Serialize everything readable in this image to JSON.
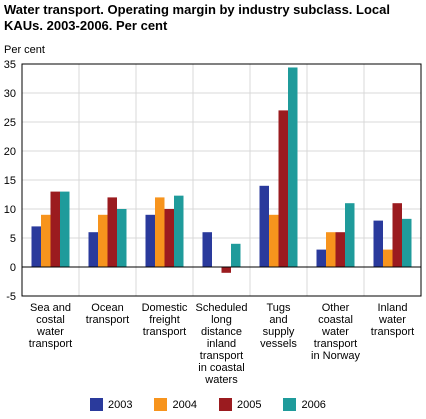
{
  "chart_data": {
    "type": "bar",
    "title": "Water transport. Operating margin by industry subclass. Local KAUs. 2003-2006. Per cent",
    "ylabel": "Per cent",
    "xlabel": "",
    "ylim": [
      -5,
      35
    ],
    "yticks": [
      35,
      30,
      25,
      20,
      15,
      10,
      5,
      0,
      -5
    ],
    "grid": true,
    "legend_position": "bottom",
    "categories": [
      [
        "Sea and",
        "costal",
        "water",
        "transport"
      ],
      [
        "Ocean",
        "transport"
      ],
      [
        "Domestic",
        "freight",
        "transport"
      ],
      [
        "Scheduled",
        "long",
        "distance",
        "inland",
        "transport",
        "in coastal",
        "waters"
      ],
      [
        "Tugs",
        "and",
        "supply",
        "vessels"
      ],
      [
        "Other",
        "coastal",
        "water",
        "transport",
        "in Norway"
      ],
      [
        "Inland",
        "water",
        "transport"
      ]
    ],
    "series": [
      {
        "name": "2003",
        "color": "#2a3a9c",
        "values": [
          7,
          6,
          9,
          6,
          14,
          3,
          8
        ]
      },
      {
        "name": "2004",
        "color": "#f7941d",
        "values": [
          9,
          9,
          12,
          0,
          9,
          6,
          3
        ]
      },
      {
        "name": "2005",
        "color": "#9b1b1f",
        "values": [
          13,
          12,
          10,
          -1,
          27,
          6,
          11
        ]
      },
      {
        "name": "2006",
        "color": "#1f9b9b",
        "values": [
          13,
          10,
          12.3,
          4,
          34.4,
          11,
          8.3
        ]
      }
    ]
  }
}
